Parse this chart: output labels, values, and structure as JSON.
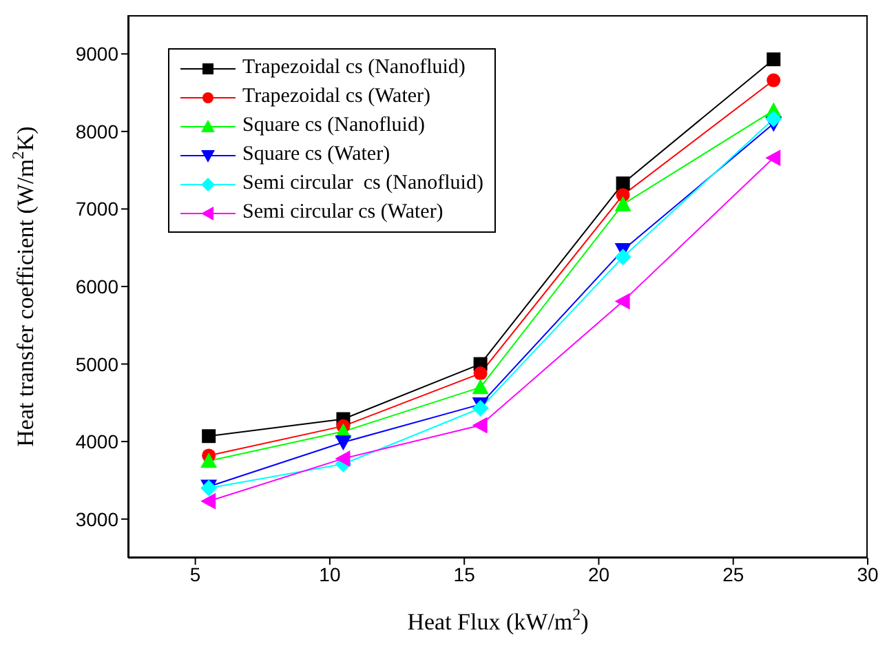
{
  "chart_data": {
    "type": "line",
    "xlabel": "Heat Flux (kW/m$^{2}$)",
    "ylabel": "Heat transfer coefficient (W/m$^{2}$K)",
    "x": [
      5.5,
      10.5,
      15.6,
      20.9,
      26.5
    ],
    "series": [
      {
        "name": "Trapezoidal cs (Nanofluid)",
        "color": "#000000",
        "marker": "square",
        "values": [
          4070,
          4290,
          5000,
          7330,
          8930
        ]
      },
      {
        "name": "Trapezoidal cs (Water)",
        "color": "#ff0000",
        "marker": "circle",
        "values": [
          3820,
          4200,
          4880,
          7180,
          8660
        ]
      },
      {
        "name": "Square cs (Nanofluid)",
        "color": "#00ff00",
        "marker": "triangle",
        "values": [
          3750,
          4130,
          4700,
          7060,
          8270
        ]
      },
      {
        "name": "Square cs (Water)",
        "color": "#0000ff",
        "marker": "triangle-down",
        "values": [
          3420,
          3990,
          4480,
          6470,
          8100
        ]
      },
      {
        "name": "Semi circular  cs (Nanofluid)",
        "color": "#00ffff",
        "marker": "diamond",
        "values": [
          3400,
          3710,
          4430,
          6380,
          8160
        ]
      },
      {
        "name": "Semi circular cs (Water)",
        "color": "#ff00ff",
        "marker": "triangle-left",
        "values": [
          3230,
          3780,
          4210,
          5810,
          7660
        ]
      }
    ],
    "xlim": [
      2.5,
      30
    ],
    "xticks": [
      5,
      10,
      15,
      20,
      25,
      30
    ],
    "ylim": [
      2500,
      9500
    ],
    "yticks": [
      3000,
      4000,
      5000,
      6000,
      7000,
      8000,
      9000
    ],
    "legend": "top left",
    "line_style": "solid"
  }
}
